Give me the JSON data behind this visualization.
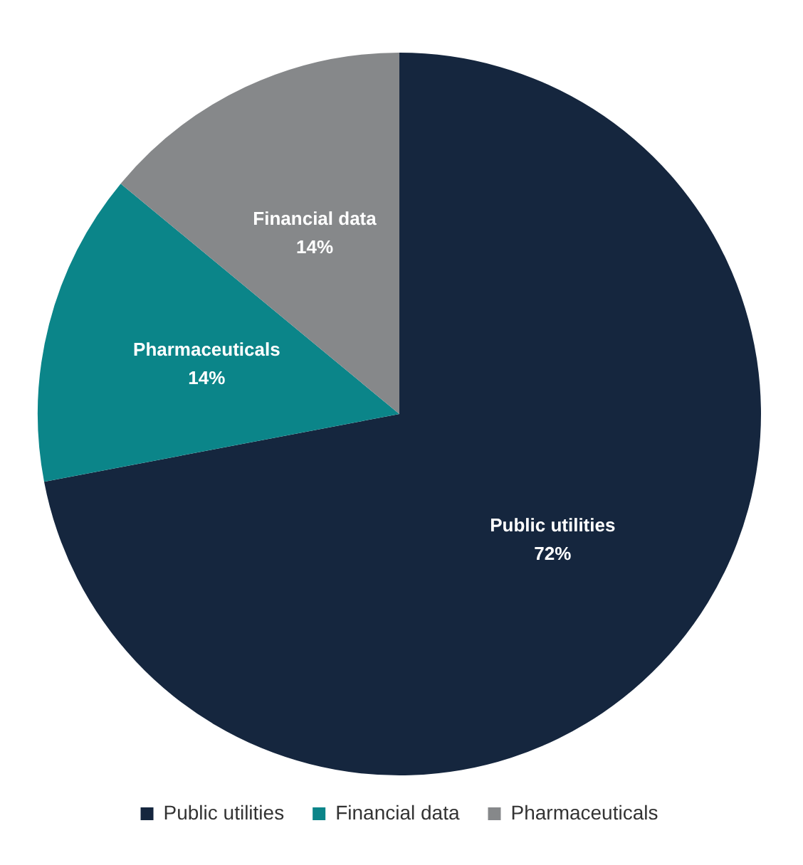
{
  "chart_data": {
    "type": "pie",
    "categories": [
      "Public utilities",
      "Financial data",
      "Pharmaceuticals"
    ],
    "values": [
      72,
      14,
      14
    ],
    "colors": [
      "#15263e",
      "#0b8589",
      "#86888a"
    ],
    "value_labels": [
      "Public utilities\n72%",
      "Pharmaceuticals\n14%",
      "Financial data\n14%"
    ],
    "legend": "bottom"
  }
}
